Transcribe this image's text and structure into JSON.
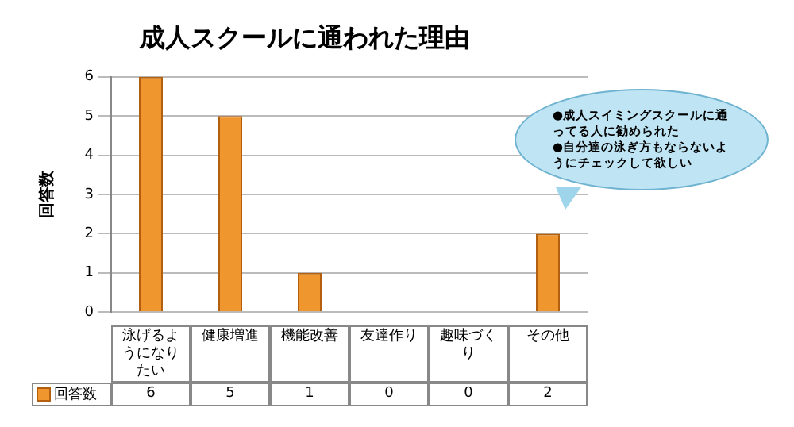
{
  "chart_data": {
    "type": "bar",
    "title": "成人スクールに通われた理由",
    "ylabel": "回答数",
    "categories": [
      "泳げるようになりたい",
      "健康増進",
      "機能改善",
      "友達作り",
      "趣味づくり",
      "その他"
    ],
    "series": [
      {
        "name": "回答数",
        "color": "#f0962e",
        "values": [
          6,
          5,
          1,
          0,
          0,
          2
        ]
      }
    ],
    "ylim": [
      0,
      6
    ],
    "yticks": [
      0,
      1,
      2,
      3,
      4,
      5,
      6
    ],
    "grid": "y",
    "legend": "bottom",
    "data_labels": true,
    "annotations": [
      "●成人スイミングスクールに通ってる人に勧められた\n●自分達の泳ぎ方もならないようにチェックして欲しい"
    ]
  }
}
